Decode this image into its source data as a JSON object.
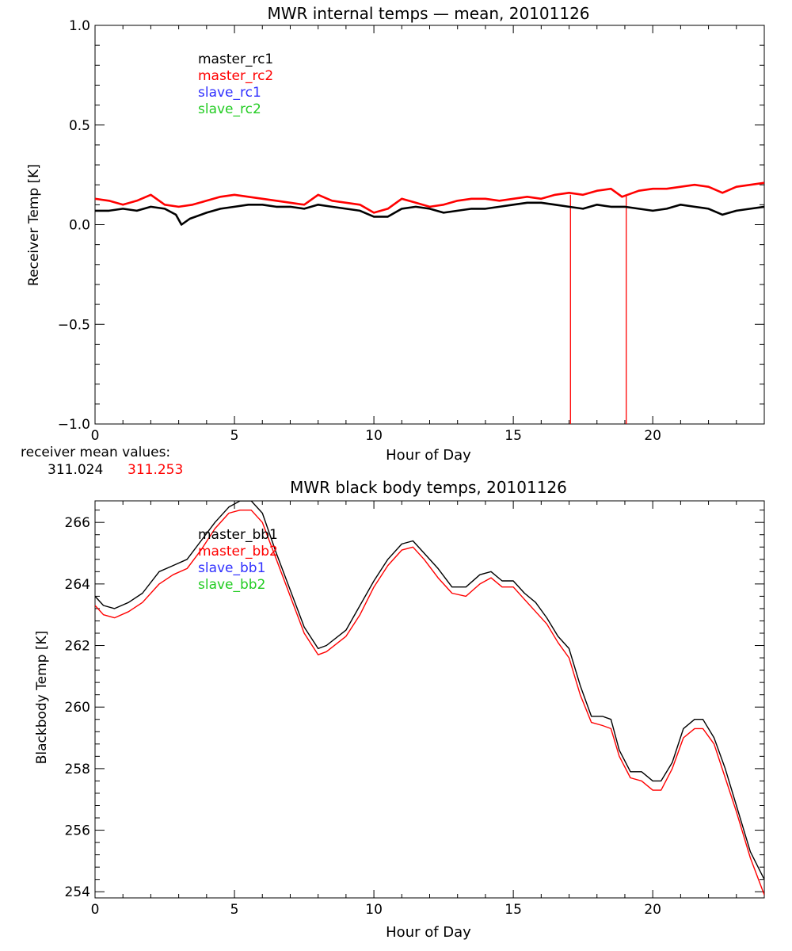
{
  "colors": {
    "black": "#000000",
    "red": "#ff0000",
    "blue": "#3030ff",
    "green": "#22cc22"
  },
  "receiver_mean": {
    "label": "receiver mean values:",
    "values": [
      "311.024",
      "311.253"
    ]
  },
  "chart_data": [
    {
      "type": "line",
      "title": "MWR internal temps — mean, 20101126",
      "xlabel": "Hour of Day",
      "ylabel": "Receiver Temp [K]",
      "xlim": [
        0,
        24
      ],
      "ylim": [
        -1.0,
        1.0
      ],
      "xticks": [
        0,
        5,
        10,
        15,
        20
      ],
      "yticks": [
        -1.0,
        -0.5,
        0.0,
        0.5,
        1.0
      ],
      "ytick_labels": [
        "−1.0",
        "−0.5",
        "0.0",
        "0.5",
        "1.0"
      ],
      "grid": false,
      "legend_position": "top-left",
      "series": [
        {
          "name": "master_rc1",
          "color": "#000000",
          "x": [
            0,
            0.5,
            1.0,
            1.5,
            2.0,
            2.5,
            2.9,
            3.1,
            3.4,
            4.0,
            4.5,
            5.0,
            5.5,
            6.0,
            6.5,
            7.0,
            7.5,
            8.0,
            8.5,
            9.0,
            9.5,
            10.0,
            10.5,
            11.0,
            11.5,
            12.0,
            12.5,
            13.0,
            13.5,
            14.0,
            14.5,
            15.0,
            15.5,
            16.0,
            16.5,
            17.0,
            17.5,
            18.0,
            18.5,
            19.0,
            19.5,
            20.0,
            20.5,
            21.0,
            21.5,
            22.0,
            22.5,
            23.0,
            23.5,
            24.0
          ],
          "y": [
            0.07,
            0.07,
            0.08,
            0.07,
            0.09,
            0.08,
            0.05,
            0.0,
            0.03,
            0.06,
            0.08,
            0.09,
            0.1,
            0.1,
            0.09,
            0.09,
            0.08,
            0.1,
            0.09,
            0.08,
            0.07,
            0.04,
            0.04,
            0.08,
            0.09,
            0.08,
            0.06,
            0.07,
            0.08,
            0.08,
            0.09,
            0.1,
            0.11,
            0.11,
            0.1,
            0.09,
            0.08,
            0.1,
            0.09,
            0.09,
            0.08,
            0.07,
            0.08,
            0.1,
            0.09,
            0.08,
            0.05,
            0.07,
            0.08,
            0.09
          ]
        },
        {
          "name": "master_rc2",
          "color": "#ff0000",
          "x": [
            0,
            0.5,
            1.0,
            1.5,
            2.0,
            2.5,
            3.0,
            3.5,
            4.0,
            4.5,
            5.0,
            5.5,
            6.0,
            6.5,
            7.0,
            7.5,
            8.0,
            8.5,
            9.0,
            9.5,
            10.0,
            10.5,
            11.0,
            11.5,
            12.0,
            12.5,
            13.0,
            13.5,
            14.0,
            14.5,
            15.0,
            15.5,
            16.0,
            16.5,
            17.0,
            17.5,
            18.0,
            18.5,
            18.9,
            19.5,
            20.0,
            20.5,
            21.0,
            21.5,
            22.0,
            22.5,
            23.0,
            23.5,
            24.0
          ],
          "y": [
            0.13,
            0.12,
            0.1,
            0.12,
            0.15,
            0.1,
            0.09,
            0.1,
            0.12,
            0.14,
            0.15,
            0.14,
            0.13,
            0.12,
            0.11,
            0.1,
            0.15,
            0.12,
            0.11,
            0.1,
            0.06,
            0.08,
            0.13,
            0.11,
            0.09,
            0.1,
            0.12,
            0.13,
            0.13,
            0.12,
            0.13,
            0.14,
            0.13,
            0.15,
            0.16,
            0.15,
            0.17,
            0.18,
            0.14,
            0.17,
            0.18,
            0.18,
            0.19,
            0.2,
            0.19,
            0.16,
            0.19,
            0.2,
            0.21
          ]
        },
        {
          "name": "slave_rc1",
          "color": "#3030ff",
          "x": [],
          "y": []
        },
        {
          "name": "slave_rc2",
          "color": "#22cc22",
          "x": [],
          "y": []
        }
      ],
      "vertical_spikes": {
        "color": "#ff0000",
        "x": [
          17.05,
          19.05
        ],
        "y_from": -1.0,
        "y_to": 0.15
      }
    },
    {
      "type": "line",
      "title": "MWR black body temps, 20101126",
      "xlabel": "Hour of Day",
      "ylabel": "Blackbody Temp [K]",
      "xlim": [
        0,
        24
      ],
      "ylim": [
        253.8,
        266.7
      ],
      "xticks": [
        0,
        5,
        10,
        15,
        20
      ],
      "yticks": [
        254,
        256,
        258,
        260,
        262,
        264,
        266
      ],
      "ytick_labels": [
        "254",
        "256",
        "258",
        "260",
        "262",
        "264",
        "266"
      ],
      "grid": false,
      "legend_position": "top-left",
      "series": [
        {
          "name": "master_bb1",
          "color": "#000000",
          "x": [
            0,
            0.3,
            0.7,
            1.2,
            1.7,
            2.3,
            2.8,
            3.3,
            3.8,
            4.3,
            4.8,
            5.2,
            5.6,
            6.0,
            6.5,
            7.0,
            7.5,
            8.0,
            8.3,
            9.0,
            9.5,
            10.0,
            10.5,
            11.0,
            11.4,
            11.8,
            12.3,
            12.8,
            13.3,
            13.8,
            14.2,
            14.6,
            15.0,
            15.4,
            15.8,
            16.2,
            16.6,
            17.0,
            17.4,
            17.8,
            18.2,
            18.5,
            18.8,
            19.2,
            19.6,
            20.0,
            20.3,
            20.7,
            21.1,
            21.5,
            21.8,
            22.2,
            22.6,
            23.0,
            23.5,
            24.0
          ],
          "y": [
            263.6,
            263.3,
            263.2,
            263.4,
            263.7,
            264.4,
            264.6,
            264.8,
            265.4,
            266.0,
            266.5,
            266.7,
            266.7,
            266.3,
            265.0,
            263.8,
            262.6,
            261.9,
            262.0,
            262.5,
            263.3,
            264.1,
            264.8,
            265.3,
            265.4,
            265.0,
            264.5,
            263.9,
            263.9,
            264.3,
            264.4,
            264.1,
            264.1,
            263.7,
            263.4,
            262.9,
            262.3,
            261.9,
            260.7,
            259.7,
            259.7,
            259.6,
            258.6,
            257.9,
            257.9,
            257.6,
            257.6,
            258.2,
            259.3,
            259.6,
            259.6,
            259.0,
            258.0,
            256.8,
            255.3,
            254.4
          ]
        },
        {
          "name": "master_bb2",
          "color": "#ff0000",
          "x": [
            0,
            0.3,
            0.7,
            1.2,
            1.7,
            2.3,
            2.8,
            3.3,
            3.8,
            4.3,
            4.8,
            5.2,
            5.6,
            6.0,
            6.5,
            7.0,
            7.5,
            8.0,
            8.3,
            9.0,
            9.5,
            10.0,
            10.5,
            11.0,
            11.4,
            11.8,
            12.3,
            12.8,
            13.3,
            13.8,
            14.2,
            14.6,
            15.0,
            15.4,
            15.8,
            16.2,
            16.6,
            17.0,
            17.4,
            17.8,
            18.2,
            18.5,
            18.8,
            19.2,
            19.6,
            20.0,
            20.3,
            20.7,
            21.1,
            21.5,
            21.8,
            22.2,
            22.6,
            23.0,
            23.5,
            24.0
          ],
          "y": [
            263.3,
            263.0,
            262.9,
            263.1,
            263.4,
            264.0,
            264.3,
            264.5,
            265.1,
            265.8,
            266.3,
            266.4,
            266.4,
            266.0,
            264.8,
            263.6,
            262.4,
            261.7,
            261.8,
            262.3,
            263.0,
            263.9,
            264.6,
            265.1,
            265.2,
            264.8,
            264.2,
            263.7,
            263.6,
            264.0,
            264.2,
            263.9,
            263.9,
            263.5,
            263.1,
            262.7,
            262.1,
            261.6,
            260.4,
            259.5,
            259.4,
            259.3,
            258.4,
            257.7,
            257.6,
            257.3,
            257.3,
            258.0,
            259.0,
            259.3,
            259.3,
            258.8,
            257.7,
            256.6,
            255.1,
            253.9
          ]
        },
        {
          "name": "slave_bb1",
          "color": "#3030ff",
          "x": [],
          "y": []
        },
        {
          "name": "slave_bb2",
          "color": "#22cc22",
          "x": [],
          "y": []
        }
      ]
    }
  ]
}
